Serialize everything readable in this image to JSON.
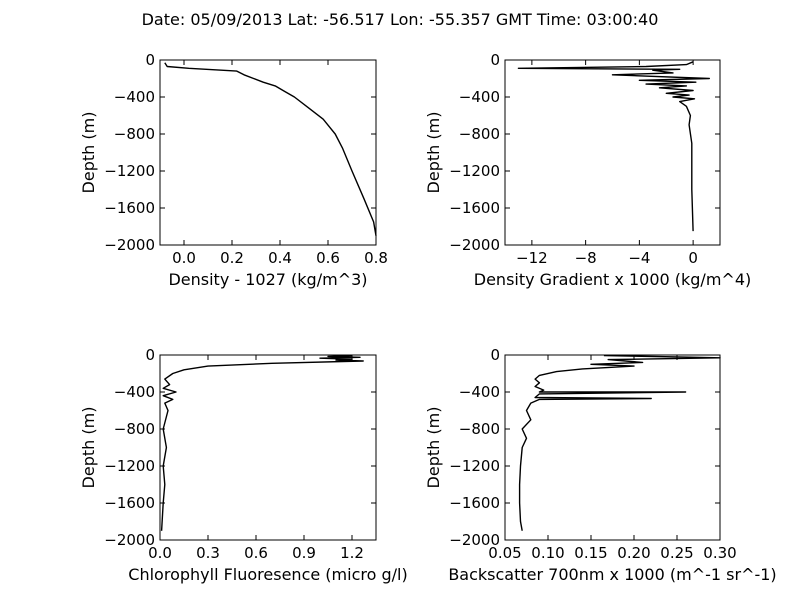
{
  "title": "Date: 05/09/2013  Lat:  -56.517 Lon:  -55.357  GMT Time: 03:00:40",
  "chart_data": [
    {
      "type": "line",
      "xlabel": "Density - 1027 (kg/m^3)",
      "ylabel": "Depth (m)",
      "xlim": [
        -0.1,
        0.8
      ],
      "ylim": [
        -2000,
        0
      ],
      "xticks": [
        0.0,
        0.2,
        0.4,
        0.6,
        0.8
      ],
      "xtick_labels": [
        "0.0",
        "0.2",
        "0.4",
        "0.6",
        "0.8"
      ],
      "yticks": [
        0,
        -400,
        -800,
        -1200,
        -1600,
        -2000
      ],
      "ytick_labels": [
        "0",
        "−400",
        "−800",
        "−1200",
        "−1600",
        "−2000"
      ],
      "x": [
        -0.08,
        -0.07,
        0.02,
        0.22,
        0.25,
        0.29,
        0.33,
        0.38,
        0.42,
        0.46,
        0.52,
        0.58,
        0.63,
        0.66,
        0.7,
        0.75,
        0.79,
        0.8
      ],
      "y": [
        -30,
        -70,
        -90,
        -120,
        -160,
        -200,
        -240,
        -280,
        -340,
        -400,
        -520,
        -640,
        -800,
        -950,
        -1200,
        -1500,
        -1750,
        -1900
      ]
    },
    {
      "type": "line",
      "xlabel": "Density Gradient x 1000 (kg/m^4)",
      "ylabel": "Depth (m)",
      "xlim": [
        -14,
        2
      ],
      "ylim": [
        -2000,
        0
      ],
      "xticks": [
        -12,
        -8,
        -4,
        0
      ],
      "xtick_labels": [
        "−12",
        "−8",
        "−4",
        "0"
      ],
      "yticks": [
        0,
        -400,
        -800,
        -1200,
        -1600,
        -2000
      ],
      "ytick_labels": [
        "0",
        "−400",
        "−800",
        "−1200",
        "−1600",
        "−2000"
      ],
      "x": [
        0.0,
        -0.5,
        -3.5,
        -13.0,
        -1.0,
        -3.0,
        -1.5,
        -6.0,
        1.2,
        -4.0,
        0.2,
        -3.5,
        -0.5,
        -2.5,
        0.0,
        -2.0,
        -0.3,
        -1.5,
        0.1,
        -1.0,
        -0.5,
        -0.2,
        -0.3,
        -0.1,
        -0.1,
        0.0
      ],
      "y": [
        -20,
        -50,
        -70,
        -90,
        -100,
        -110,
        -140,
        -160,
        -200,
        -220,
        -240,
        -260,
        -280,
        -300,
        -330,
        -360,
        -380,
        -400,
        -420,
        -450,
        -500,
        -600,
        -700,
        -900,
        -1400,
        -1850
      ]
    },
    {
      "type": "line",
      "xlabel": "Chlorophyll Fluoresence (micro g/l)",
      "ylabel": "Depth (m)",
      "xlim": [
        0.0,
        1.35
      ],
      "ylim": [
        -2000,
        0
      ],
      "xticks": [
        0.0,
        0.3,
        0.6,
        0.9,
        1.2
      ],
      "xtick_labels": [
        "0.0",
        "0.3",
        "0.6",
        "0.9",
        "1.2"
      ],
      "yticks": [
        0,
        -400,
        -800,
        -1200,
        -1600,
        -2000
      ],
      "ytick_labels": [
        "0",
        "−400",
        "−800",
        "−1200",
        "−1600",
        "−2000"
      ],
      "x": [
        1.2,
        1.05,
        1.25,
        1.0,
        1.2,
        1.1,
        1.27,
        0.7,
        0.3,
        0.15,
        0.08,
        0.03,
        0.06,
        0.02,
        0.1,
        0.02,
        0.08,
        0.03,
        0.05,
        0.02,
        0.04,
        0.02,
        0.03,
        0.02,
        0.01
      ],
      "y": [
        -5,
        -15,
        -25,
        -35,
        -45,
        -55,
        -65,
        -90,
        -120,
        -160,
        -200,
        -260,
        -320,
        -360,
        -400,
        -440,
        -480,
        -520,
        -600,
        -800,
        -1000,
        -1200,
        -1400,
        -1600,
        -1900
      ]
    },
    {
      "type": "line",
      "xlabel": "Backscatter 700nm x 1000 (m^-1 sr^-1)",
      "ylabel": "Depth (m)",
      "xlim": [
        0.05,
        0.3
      ],
      "ylim": [
        -2000,
        0
      ],
      "xticks": [
        0.05,
        0.1,
        0.15,
        0.2,
        0.25,
        0.3
      ],
      "xtick_labels": [
        "0.05",
        "0.10",
        "0.15",
        "0.20",
        "0.25",
        "0.30"
      ],
      "yticks": [
        0,
        -400,
        -800,
        -1200,
        -1600,
        -2000
      ],
      "ytick_labels": [
        "0",
        "−400",
        "−800",
        "−1200",
        "−1600",
        "−2000"
      ],
      "x": [
        0.165,
        0.3,
        0.17,
        0.21,
        0.15,
        0.2,
        0.14,
        0.11,
        0.09,
        0.085,
        0.09,
        0.085,
        0.095,
        0.09,
        0.26,
        0.09,
        0.085,
        0.22,
        0.09,
        0.08,
        0.075,
        0.08,
        0.07,
        0.075,
        0.07,
        0.068,
        0.067,
        0.067,
        0.068,
        0.07
      ],
      "y": [
        -5,
        -30,
        -50,
        -80,
        -100,
        -120,
        -150,
        -180,
        -220,
        -260,
        -300,
        -340,
        -380,
        -400,
        -400,
        -420,
        -460,
        -470,
        -480,
        -520,
        -600,
        -700,
        -800,
        -900,
        -1000,
        -1200,
        -1400,
        -1600,
        -1800,
        -1900
      ]
    }
  ]
}
